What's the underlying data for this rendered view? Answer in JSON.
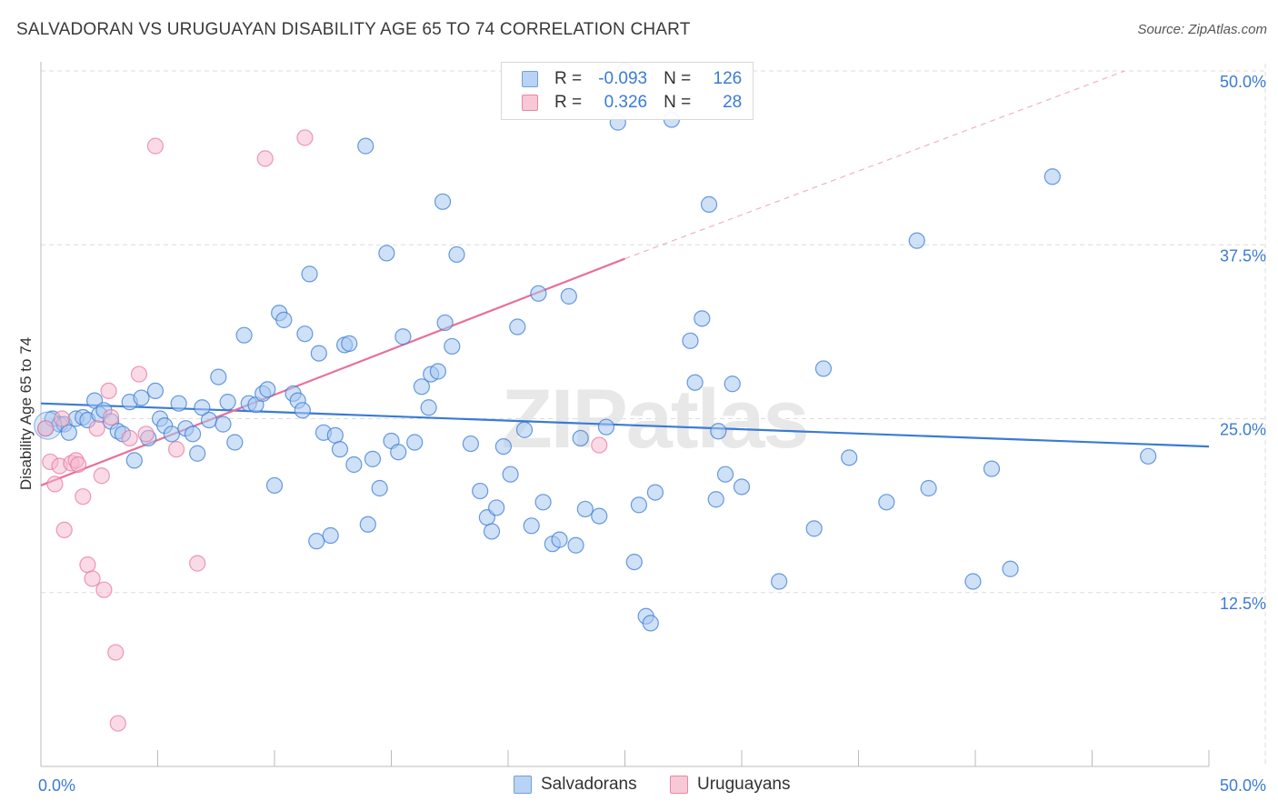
{
  "header": {
    "title": "SALVADORAN VS URUGUAYAN DISABILITY AGE 65 TO 74 CORRELATION CHART",
    "source": "Source: ZipAtlas.com"
  },
  "legend": {
    "rows": [
      {
        "r_label": "R =",
        "r_value": "-0.093",
        "n_label": "N =",
        "n_value": "126"
      },
      {
        "r_label": "R =",
        "r_value": "0.326",
        "n_label": "N =",
        "n_value": "28"
      }
    ]
  },
  "bottom_legend": [
    "Salvadorans",
    "Uruguayans"
  ],
  "watermark": "ZIPatlas",
  "colors": {
    "blue": "#3a7bd5",
    "blue_fill": "#a8c8f0",
    "pink": "#e8709a",
    "pink_fill": "#f5b8cc",
    "grid": "#dddddd",
    "tick_label": "#3a7bd5"
  },
  "chart_data": {
    "type": "scatter",
    "title": "SALVADORAN VS URUGUAYAN DISABILITY AGE 65 TO 74 CORRELATION CHART",
    "xlabel": "",
    "ylabel": "Disability Age 65 to 74",
    "xlim": [
      0,
      50
    ],
    "ylim": [
      0,
      50
    ],
    "x_ticks": [
      "0.0%",
      "50.0%"
    ],
    "y_ticks": [
      "12.5%",
      "25.0%",
      "37.5%",
      "50.0%"
    ],
    "y_tick_values": [
      12.5,
      25.0,
      37.5,
      50.0
    ],
    "grid": true,
    "legend_position": "top-center",
    "series": [
      {
        "name": "Salvadorans",
        "color": "#3a7bd5",
        "r": -0.093,
        "n": 126,
        "trend": [
          [
            0,
            26.1
          ],
          [
            50,
            23.0
          ]
        ],
        "points": [
          [
            0.2,
            24.3
          ],
          [
            0.5,
            25.0
          ],
          [
            0.8,
            24.6
          ],
          [
            1.0,
            24.6
          ],
          [
            1.2,
            24.0
          ],
          [
            1.5,
            25.0
          ],
          [
            1.8,
            25.1
          ],
          [
            2.0,
            24.9
          ],
          [
            2.3,
            26.3
          ],
          [
            2.5,
            25.3
          ],
          [
            2.7,
            25.6
          ],
          [
            3.0,
            24.8
          ],
          [
            3.3,
            24.1
          ],
          [
            3.5,
            23.9
          ],
          [
            3.8,
            26.2
          ],
          [
            4.0,
            22.0
          ],
          [
            4.3,
            26.5
          ],
          [
            4.6,
            23.6
          ],
          [
            4.9,
            27.0
          ],
          [
            5.1,
            25.0
          ],
          [
            5.3,
            24.5
          ],
          [
            5.6,
            23.9
          ],
          [
            5.9,
            26.1
          ],
          [
            6.2,
            24.3
          ],
          [
            6.5,
            23.9
          ],
          [
            6.7,
            22.5
          ],
          [
            6.9,
            25.8
          ],
          [
            7.2,
            24.9
          ],
          [
            7.6,
            28.0
          ],
          [
            7.8,
            24.6
          ],
          [
            8.0,
            26.2
          ],
          [
            8.3,
            23.3
          ],
          [
            8.7,
            31.0
          ],
          [
            8.9,
            26.1
          ],
          [
            9.2,
            26.0
          ],
          [
            9.5,
            26.8
          ],
          [
            9.7,
            27.1
          ],
          [
            10.0,
            20.2
          ],
          [
            10.2,
            32.6
          ],
          [
            10.4,
            32.1
          ],
          [
            10.8,
            26.8
          ],
          [
            11.0,
            26.3
          ],
          [
            11.2,
            25.6
          ],
          [
            11.3,
            31.1
          ],
          [
            11.5,
            35.4
          ],
          [
            11.8,
            16.2
          ],
          [
            11.9,
            29.7
          ],
          [
            12.1,
            24.0
          ],
          [
            12.4,
            16.6
          ],
          [
            12.6,
            23.8
          ],
          [
            12.8,
            22.8
          ],
          [
            13.0,
            30.3
          ],
          [
            13.2,
            30.4
          ],
          [
            13.4,
            21.7
          ],
          [
            13.9,
            44.6
          ],
          [
            14.0,
            17.4
          ],
          [
            14.2,
            22.1
          ],
          [
            14.5,
            20.0
          ],
          [
            14.8,
            36.9
          ],
          [
            15.0,
            23.4
          ],
          [
            15.3,
            22.6
          ],
          [
            15.5,
            30.9
          ],
          [
            16.0,
            23.3
          ],
          [
            16.3,
            27.3
          ],
          [
            16.6,
            25.8
          ],
          [
            16.7,
            28.2
          ],
          [
            17.0,
            28.4
          ],
          [
            17.2,
            40.6
          ],
          [
            17.3,
            31.9
          ],
          [
            17.6,
            30.2
          ],
          [
            17.8,
            36.8
          ],
          [
            18.4,
            23.2
          ],
          [
            18.8,
            19.8
          ],
          [
            19.1,
            17.9
          ],
          [
            19.3,
            16.9
          ],
          [
            19.5,
            18.6
          ],
          [
            19.8,
            23.0
          ],
          [
            20.1,
            21.0
          ],
          [
            20.4,
            31.6
          ],
          [
            20.7,
            24.2
          ],
          [
            21.0,
            17.3
          ],
          [
            21.3,
            34.0
          ],
          [
            21.5,
            19.0
          ],
          [
            21.9,
            16.0
          ],
          [
            22.2,
            16.3
          ],
          [
            22.6,
            33.8
          ],
          [
            22.9,
            15.9
          ],
          [
            23.1,
            23.6
          ],
          [
            23.3,
            18.5
          ],
          [
            23.9,
            18.0
          ],
          [
            24.2,
            24.4
          ],
          [
            24.7,
            46.3
          ],
          [
            25.0,
            50.0
          ],
          [
            25.4,
            14.7
          ],
          [
            25.6,
            18.8
          ],
          [
            25.9,
            10.8
          ],
          [
            26.1,
            10.3
          ],
          [
            26.3,
            19.7
          ],
          [
            27.0,
            46.5
          ],
          [
            27.8,
            30.6
          ],
          [
            28.0,
            27.6
          ],
          [
            28.3,
            32.2
          ],
          [
            28.6,
            40.4
          ],
          [
            28.9,
            19.2
          ],
          [
            29.0,
            24.1
          ],
          [
            29.3,
            21.0
          ],
          [
            29.6,
            27.5
          ],
          [
            30.0,
            20.1
          ],
          [
            31.6,
            13.3
          ],
          [
            33.1,
            17.1
          ],
          [
            33.5,
            28.6
          ],
          [
            34.6,
            22.2
          ],
          [
            36.2,
            19.0
          ],
          [
            37.5,
            37.8
          ],
          [
            38.0,
            20.0
          ],
          [
            39.9,
            13.3
          ],
          [
            40.7,
            21.4
          ],
          [
            41.5,
            14.2
          ],
          [
            43.3,
            42.4
          ],
          [
            47.4,
            22.3
          ]
        ]
      },
      {
        "name": "Uruguayans",
        "color": "#e8709a",
        "r": 0.326,
        "n": 28,
        "trend": [
          [
            0,
            20.2
          ],
          [
            25,
            36.5
          ]
        ],
        "trend_extension": [
          [
            25,
            36.5
          ],
          [
            46.4,
            50.0
          ]
        ],
        "points": [
          [
            0.2,
            24.3
          ],
          [
            0.4,
            21.9
          ],
          [
            0.6,
            20.3
          ],
          [
            0.8,
            21.6
          ],
          [
            1.0,
            17.0
          ],
          [
            1.3,
            21.8
          ],
          [
            1.5,
            22.0
          ],
          [
            1.6,
            21.7
          ],
          [
            1.8,
            19.4
          ],
          [
            2.0,
            14.5
          ],
          [
            2.2,
            13.5
          ],
          [
            2.4,
            24.3
          ],
          [
            2.6,
            20.9
          ],
          [
            2.7,
            12.7
          ],
          [
            2.9,
            27.0
          ],
          [
            3.0,
            25.1
          ],
          [
            3.2,
            8.2
          ],
          [
            3.3,
            3.1
          ],
          [
            3.8,
            23.6
          ],
          [
            4.2,
            28.2
          ],
          [
            4.5,
            23.9
          ],
          [
            4.9,
            44.6
          ],
          [
            5.8,
            22.8
          ],
          [
            6.7,
            14.6
          ],
          [
            9.6,
            43.7
          ],
          [
            11.3,
            45.2
          ],
          [
            23.9,
            23.1
          ],
          [
            0.9,
            25.0
          ]
        ]
      }
    ]
  }
}
